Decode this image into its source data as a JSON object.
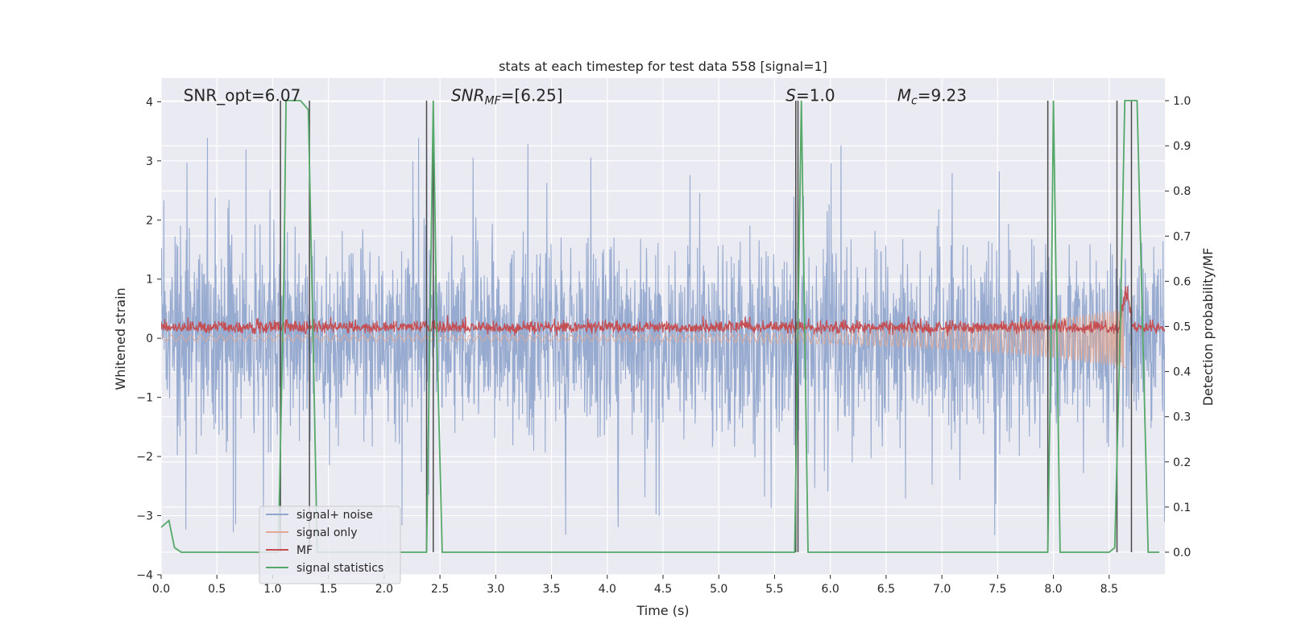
{
  "chart_data": {
    "type": "line",
    "title": "stats at each timestep for test data 558 [signal=1]",
    "xlabel": "Time (s)",
    "ylabel": "Whitened strain",
    "y2label": "Detection probability/MF",
    "xlim": [
      0.0,
      9.0
    ],
    "ylim": [
      -4.0,
      4.4
    ],
    "y2lim": [
      -0.05,
      1.05
    ],
    "xticks": [
      0.0,
      0.5,
      1.0,
      1.5,
      2.0,
      2.5,
      3.0,
      3.5,
      4.0,
      4.5,
      5.0,
      5.5,
      6.0,
      6.5,
      7.0,
      7.5,
      8.0,
      8.5
    ],
    "xtick_labels": [
      "0.0",
      "0.5",
      "1.0",
      "1.5",
      "2.0",
      "2.5",
      "3.0",
      "3.5",
      "4.0",
      "4.5",
      "5.0",
      "5.5",
      "6.0",
      "6.5",
      "7.0",
      "7.5",
      "8.0",
      "8.5"
    ],
    "yticks": [
      -4,
      -3,
      -2,
      -1,
      0,
      1,
      2,
      3,
      4
    ],
    "ytick_labels": [
      "−4",
      "−3",
      "−2",
      "−1",
      "0",
      "1",
      "2",
      "3",
      "4"
    ],
    "y2ticks": [
      0.0,
      0.1,
      0.2,
      0.3,
      0.4,
      0.5,
      0.6,
      0.7,
      0.8,
      0.9,
      1.0
    ],
    "y2tick_labels": [
      "0.0",
      "0.1",
      "0.2",
      "0.3",
      "0.4",
      "0.5",
      "0.6",
      "0.7",
      "0.8",
      "0.9",
      "1.0"
    ],
    "grid": true,
    "legend_position": "lower-left",
    "annotations": [
      {
        "id": "snr-opt",
        "text": "SNR_opt=6.07",
        "x": 0.2,
        "y": 4.0
      },
      {
        "id": "snr-mf",
        "text": "SNRMF=[6.25]",
        "main": "SNR",
        "sub": "MF",
        "rest": "=[6.25]",
        "x": 2.6,
        "y": 4.0
      },
      {
        "id": "s-value",
        "text": "S=1.0",
        "main": "S",
        "sub": "",
        "rest": "=1.0",
        "x": 5.6,
        "y": 4.0
      },
      {
        "id": "mc-value",
        "text": "Mc=9.23",
        "main": "M",
        "sub": "c",
        "rest": "=9.23",
        "x": 6.6,
        "y": 4.0
      }
    ],
    "series": [
      {
        "name": "signal+ noise",
        "color": "#92a6cc",
        "axis": "left",
        "description": "whitened strain noise, dense band about ±1.3 with spikes to about ±3.4",
        "band_amplitude": 1.3,
        "spike_amplitude": 3.4
      },
      {
        "name": "signal only",
        "color": "#e3a993",
        "axis": "left",
        "description": "chirp signal growing in amplitude toward the merger near 8.65 s",
        "start_amplitude": 0.05,
        "end_amplitude": 0.5,
        "merger_time": 8.65
      },
      {
        "name": "MF",
        "color": "#c44e52",
        "axis": "left",
        "description": "matched-filter output, band roughly 0.0 to 0.4 with a peak near 8.65 s",
        "center": 0.18,
        "peak_value": 1.0,
        "peak_time": 8.65
      },
      {
        "name": "signal statistics",
        "color": "#55a868",
        "axis": "right",
        "x": [
          0.0,
          0.07,
          0.12,
          0.18,
          0.25,
          1.0,
          1.05,
          1.1,
          1.12,
          1.15,
          1.2,
          1.25,
          1.32,
          1.36,
          1.4,
          2.0,
          2.38,
          2.41,
          2.44,
          2.47,
          2.52,
          3.0,
          5.68,
          5.71,
          5.74,
          5.77,
          5.8,
          6.5,
          7.95,
          7.98,
          8.0,
          8.03,
          8.06,
          8.5,
          8.55,
          8.6,
          8.64,
          8.7,
          8.75,
          8.8,
          8.85,
          8.95
        ],
        "y": [
          0.055,
          0.07,
          0.01,
          0.0,
          0.0,
          0.0,
          0.0,
          0.6,
          1.0,
          1.0,
          1.0,
          1.0,
          0.98,
          0.5,
          0.0,
          0.0,
          0.0,
          0.5,
          1.0,
          0.5,
          0.0,
          0.0,
          0.0,
          0.5,
          1.0,
          0.5,
          0.0,
          0.0,
          0.0,
          0.5,
          1.0,
          0.5,
          0.0,
          0.0,
          0.01,
          0.5,
          1.0,
          1.0,
          1.0,
          0.5,
          0.0,
          0.0
        ]
      }
    ],
    "vlines": [
      {
        "x": 1.07,
        "color": "#4a4a4a"
      },
      {
        "x": 1.33,
        "color": "#4a4a4a"
      },
      {
        "x": 2.38,
        "color": "#4a4a4a"
      },
      {
        "x": 2.44,
        "color": "#4a4a4a"
      },
      {
        "x": 5.69,
        "color": "#4a4a4a"
      },
      {
        "x": 5.71,
        "color": "#4a4a4a"
      },
      {
        "x": 7.95,
        "color": "#4a4a4a"
      },
      {
        "x": 8.57,
        "color": "#4a4a4a"
      },
      {
        "x": 8.7,
        "color": "#4a4a4a"
      }
    ],
    "colors": {
      "plot_background": "#eaeaf2",
      "grid": "#ffffff",
      "vline": "#4a4a4a",
      "text": "#262626"
    }
  }
}
